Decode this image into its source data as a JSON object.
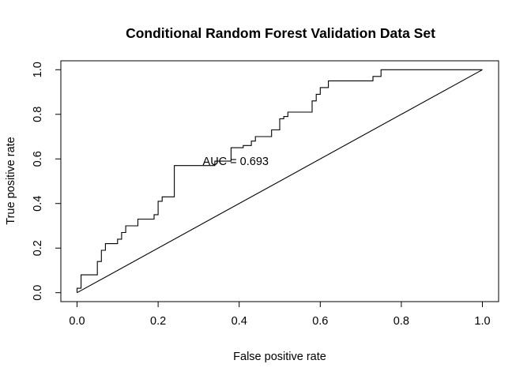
{
  "chart_data": {
    "type": "line",
    "title": "Conditional Random Forest Validation Data Set",
    "xlabel": "False positive rate",
    "ylabel": "True positive rate",
    "xlim": [
      -0.04,
      1.04
    ],
    "ylim": [
      -0.04,
      1.04
    ],
    "x_ticks": [
      "0.0",
      "0.2",
      "0.4",
      "0.6",
      "0.8",
      "1.0"
    ],
    "y_ticks": [
      "0.0",
      "0.2",
      "0.4",
      "0.6",
      "0.8",
      "1.0"
    ],
    "grid": false,
    "legend": "none",
    "annotation": {
      "text": "AUC = 0.693",
      "x": 0.31,
      "y": 0.59
    },
    "series": [
      {
        "x": [
          0.0,
          0.0,
          0.01,
          0.01,
          0.05,
          0.05,
          0.06,
          0.06,
          0.07,
          0.07,
          0.1,
          0.1,
          0.11,
          0.11,
          0.12,
          0.12,
          0.15,
          0.15,
          0.19,
          0.19,
          0.2,
          0.2,
          0.21,
          0.21,
          0.24,
          0.24,
          0.34,
          0.34,
          0.38,
          0.38,
          0.41,
          0.41,
          0.43,
          0.43,
          0.44,
          0.44,
          0.48,
          0.48,
          0.5,
          0.5,
          0.51,
          0.51,
          0.52,
          0.52,
          0.58,
          0.58,
          0.59,
          0.59,
          0.6,
          0.6,
          0.62,
          0.62,
          0.73,
          0.73,
          0.75,
          0.75,
          0.82,
          0.82,
          1.0
        ],
        "y": [
          0.0,
          0.02,
          0.02,
          0.08,
          0.08,
          0.14,
          0.14,
          0.19,
          0.19,
          0.22,
          0.22,
          0.24,
          0.24,
          0.27,
          0.27,
          0.3,
          0.3,
          0.33,
          0.33,
          0.35,
          0.35,
          0.41,
          0.41,
          0.43,
          0.43,
          0.57,
          0.57,
          0.59,
          0.59,
          0.65,
          0.65,
          0.66,
          0.66,
          0.68,
          0.68,
          0.7,
          0.7,
          0.73,
          0.73,
          0.78,
          0.78,
          0.79,
          0.79,
          0.81,
          0.81,
          0.86,
          0.86,
          0.89,
          0.89,
          0.92,
          0.92,
          0.95,
          0.95,
          0.97,
          0.97,
          1.0,
          1.0,
          1.0,
          1.0
        ]
      },
      {
        "x": [
          0.0,
          1.0
        ],
        "y": [
          0.0,
          1.0
        ]
      }
    ]
  }
}
